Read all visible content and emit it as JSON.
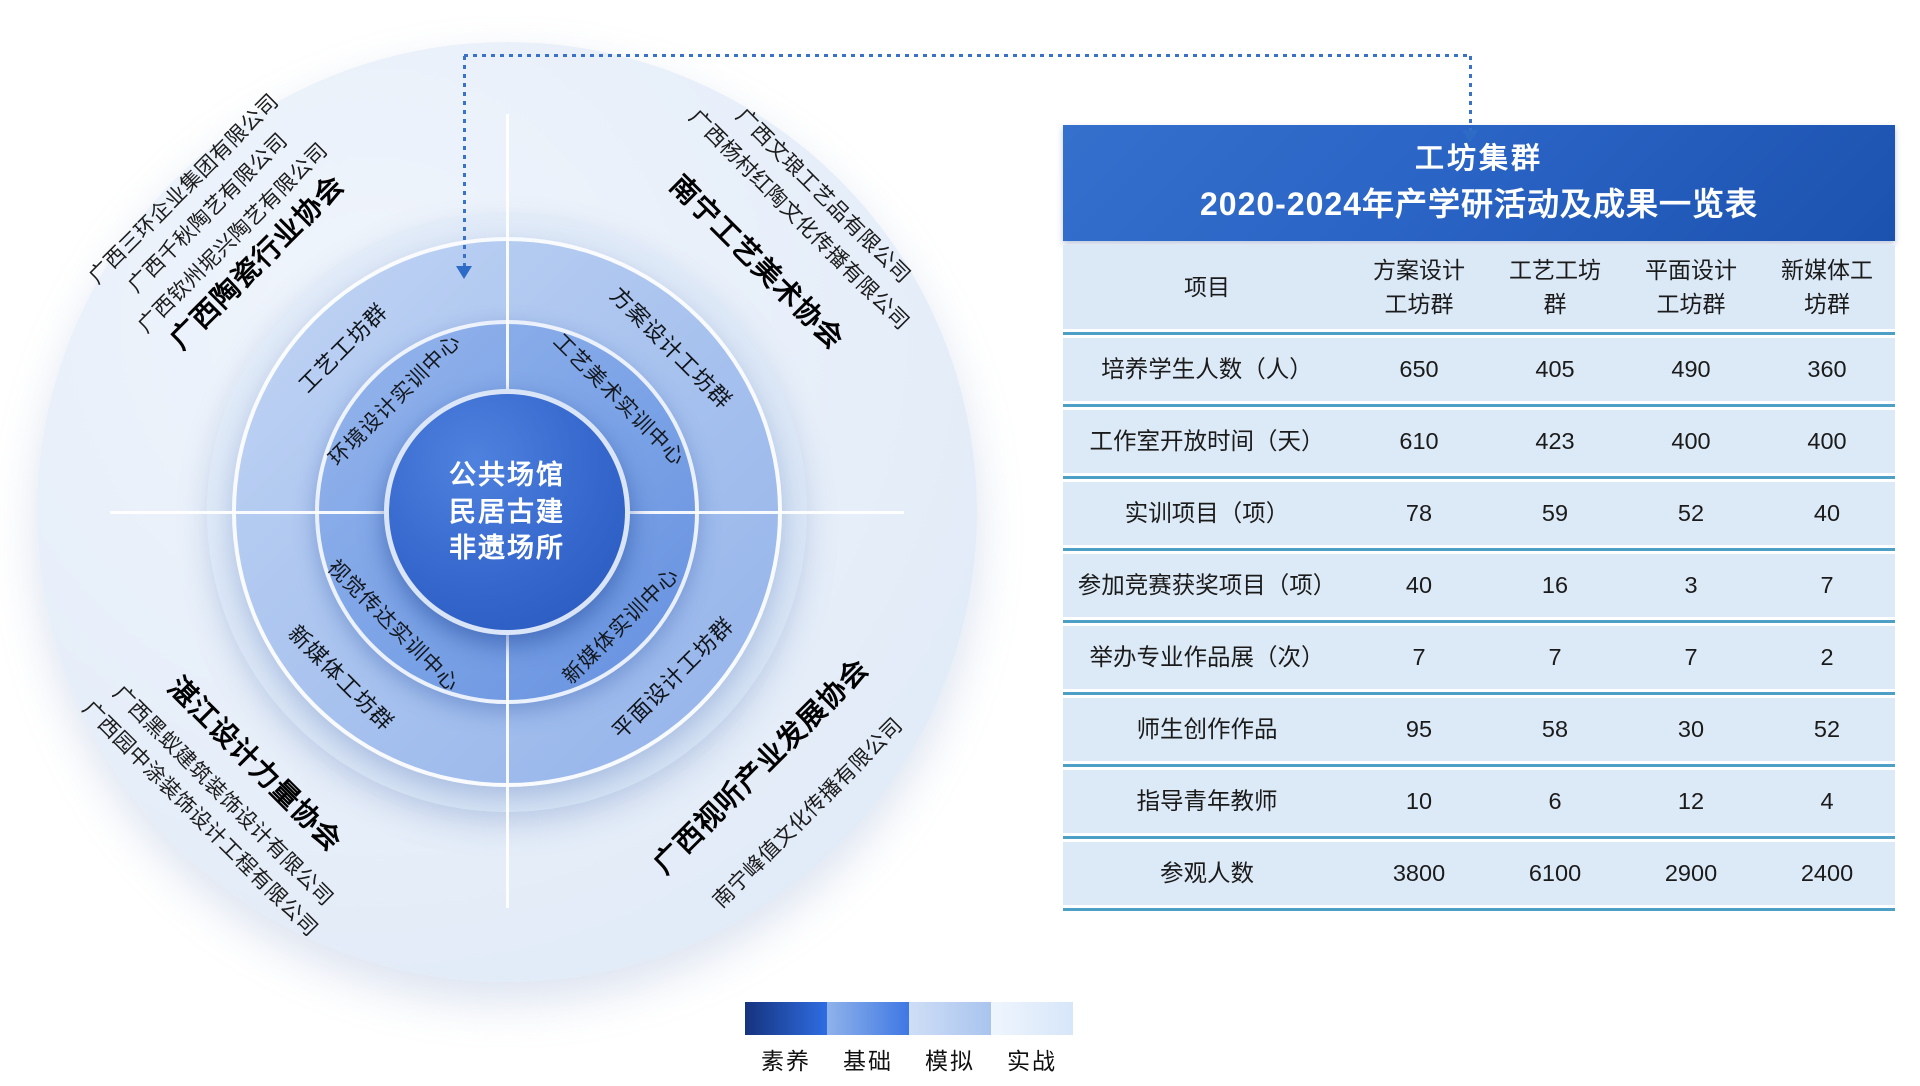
{
  "diagram": {
    "center_lines": [
      "公共场馆",
      "民居古建",
      "非遗场所"
    ],
    "training_centers": [
      {
        "label": "环境设计实训中心"
      },
      {
        "label": "工艺美术实训中心"
      },
      {
        "label": "视觉传达实训中心"
      },
      {
        "label": "新媒体实训中心"
      }
    ],
    "workshop_groups": [
      {
        "label": "工艺工坊群"
      },
      {
        "label": "方案设计工坊群"
      },
      {
        "label": "新媒体工坊群"
      },
      {
        "label": "平面设计工坊群"
      }
    ],
    "associations": [
      {
        "label": "广西陶瓷行业协会"
      },
      {
        "label": "南宁工艺美术协会"
      },
      {
        "label": "湛江设计力量协会"
      },
      {
        "label": "广西视听产业发展协会"
      }
    ],
    "companies": {
      "top_left": [
        "广西三环企业集团有限公司",
        "广西千秋陶艺有限公司",
        "广西钦州坭兴陶艺有限公司"
      ],
      "top_right": [
        "广西文琅工艺品有限公司",
        "广西杨村红陶文化传播有限公司"
      ],
      "bottom_left": [
        "广西黑蚁建筑装饰设计有限公司",
        "广西园中涂装饰设计工程有限公司"
      ],
      "bottom_right": [
        "南宁峰值文化传播有限公司"
      ]
    }
  },
  "table": {
    "title_line1": "工坊集群",
    "title_line2": "2020-2024年产学研活动及成果一览表",
    "columns": [
      "项目",
      "方案设计\n工坊群",
      "工艺工坊\n群",
      "平面设计\n工坊群",
      "新媒体工\n坊群"
    ],
    "rows": [
      {
        "label": "培养学生人数（人）",
        "values": [
          "650",
          "405",
          "490",
          "360"
        ]
      },
      {
        "label": "工作室开放时间（天）",
        "values": [
          "610",
          "423",
          "400",
          "400"
        ]
      },
      {
        "label": "实训项目（项）",
        "values": [
          "78",
          "59",
          "52",
          "40"
        ]
      },
      {
        "label": "参加竞赛获奖项目（项）",
        "values": [
          "40",
          "16",
          "3",
          "7"
        ]
      },
      {
        "label": "举办专业作品展（次）",
        "values": [
          "7",
          "7",
          "7",
          "2"
        ]
      },
      {
        "label": "师生创作作品",
        "values": [
          "95",
          "58",
          "30",
          "52"
        ]
      },
      {
        "label": "指导青年教师",
        "values": [
          "10",
          "6",
          "12",
          "4"
        ]
      },
      {
        "label": "参观人数",
        "values": [
          "3800",
          "6100",
          "2900",
          "2400"
        ]
      }
    ]
  },
  "legend": {
    "items": [
      {
        "label": "素养",
        "from": "#16337e",
        "to": "#2f6de2"
      },
      {
        "label": "基础",
        "from": "#8fb2ea",
        "to": "#3f78e4"
      },
      {
        "label": "模拟",
        "from": "#cfdef6",
        "to": "#a9c4ee"
      },
      {
        "label": "实战",
        "from": "#eff5fd",
        "to": "#d7e6f9"
      }
    ]
  },
  "colors": {
    "accent_blue": "#2a64c5",
    "connector_blue": "#2e6bc6",
    "row_background": "#dce9f6",
    "row_separator": "#4d9fc6",
    "core_circle": "#3567cd"
  }
}
